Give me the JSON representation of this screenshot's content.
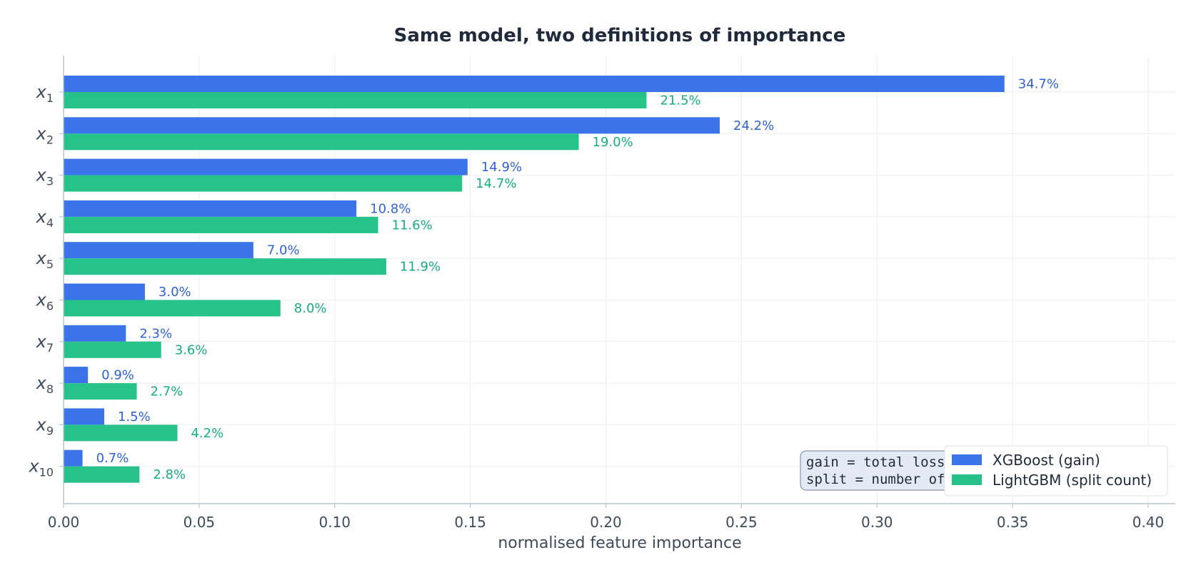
{
  "chart_data": {
    "type": "bar",
    "orientation": "horizontal",
    "title": "Same model, two definitions of importance",
    "xlabel": "normalised feature importance",
    "ylabel": "",
    "xlim": [
      0,
      0.41
    ],
    "x_ticks": [
      "0.00",
      "0.05",
      "0.10",
      "0.15",
      "0.20",
      "0.25",
      "0.30",
      "0.35",
      "0.40"
    ],
    "grid": true,
    "categories": [
      {
        "base": "x",
        "sub": "1"
      },
      {
        "base": "x",
        "sub": "2"
      },
      {
        "base": "x",
        "sub": "3"
      },
      {
        "base": "x",
        "sub": "4"
      },
      {
        "base": "x",
        "sub": "5"
      },
      {
        "base": "x",
        "sub": "6"
      },
      {
        "base": "x",
        "sub": "7"
      },
      {
        "base": "x",
        "sub": "8"
      },
      {
        "base": "x",
        "sub": "9"
      },
      {
        "base": "x",
        "sub": "10"
      }
    ],
    "series": [
      {
        "name": "XGBoost (gain)",
        "color": "#3b74ea",
        "label_color": "#2f63d9",
        "values": [
          0.347,
          0.242,
          0.149,
          0.108,
          0.07,
          0.03,
          0.023,
          0.009,
          0.015,
          0.007
        ],
        "labels": [
          "34.7%",
          "24.2%",
          "14.9%",
          "10.8%",
          "7.0%",
          "3.0%",
          "2.3%",
          "0.9%",
          "1.5%",
          "0.7%"
        ]
      },
      {
        "name": "LightGBM (split count)",
        "color": "#27c28a",
        "label_color": "#16b07a",
        "values": [
          0.215,
          0.19,
          0.147,
          0.116,
          0.119,
          0.08,
          0.036,
          0.027,
          0.042,
          0.028
        ],
        "labels": [
          "21.5%",
          "19.0%",
          "14.7%",
          "11.6%",
          "11.9%",
          "8.0%",
          "3.6%",
          "2.7%",
          "4.2%",
          "2.8%"
        ]
      }
    ],
    "legend_position": "bottom-right",
    "annotation": {
      "lines": [
        "gain   = total loss reduction delivered",
        "  split  = number of times a feature is used"
      ],
      "visible_lines": [
        "gain   = total loss re",
        "  split  = number of"
      ]
    }
  },
  "colors": {
    "axis": "#b9c4d6",
    "grid": "#eceef2",
    "note_bg": "#e4eaf3",
    "note_border": "#8a97ab"
  }
}
